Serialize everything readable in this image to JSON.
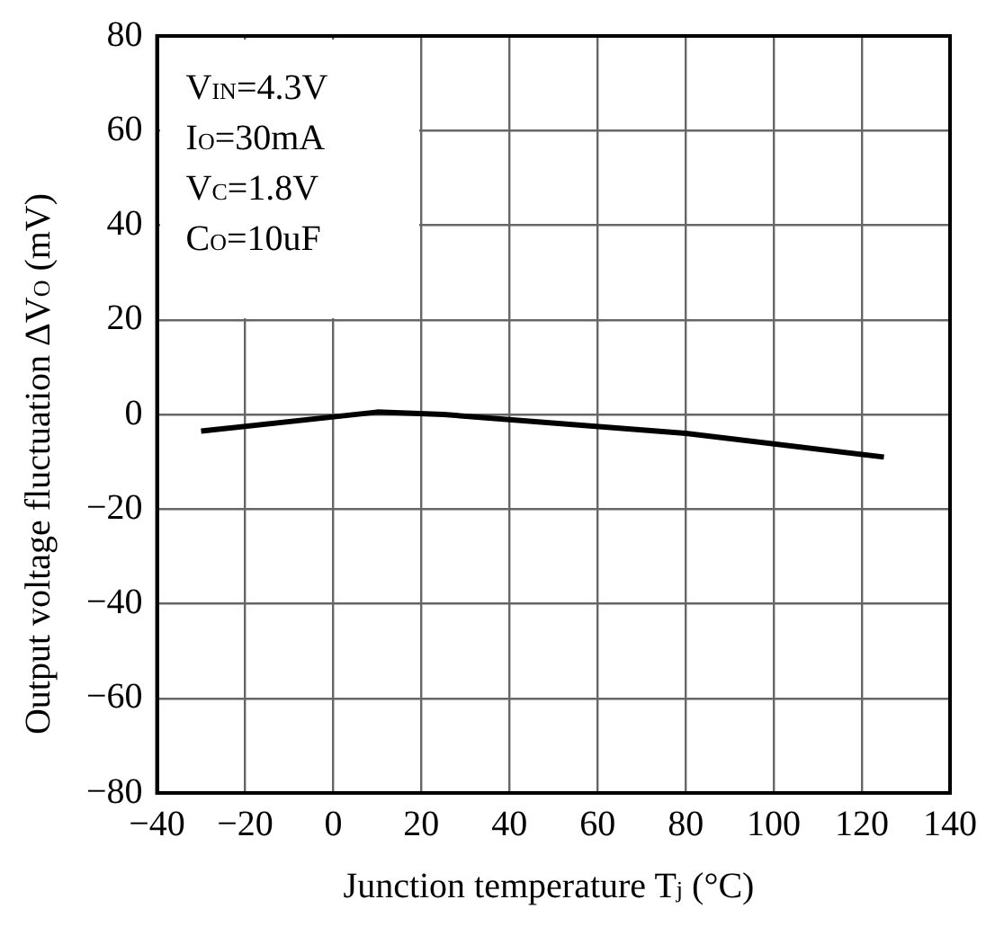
{
  "chart_data": {
    "type": "line",
    "xlabel": "Junction temperature T$_{j}$ (°C)",
    "ylabel": "Output voltage fluctuation ΔV$_{O}$ (mV)",
    "annotations": [
      "V$_{IN}$=4.3V",
      "I$_{O}$=30mA",
      "V$_{C}$=1.8V",
      "C$_{O}$=10uF"
    ],
    "series": [
      {
        "color": "#000000",
        "x": [
          -30,
          10,
          25,
          80,
          125
        ],
        "values": [
          -3.5,
          0.5,
          0,
          -4,
          -9
        ]
      }
    ],
    "xlim": [
      -40,
      140
    ],
    "xticks": [
      {
        "value": -40,
        "label": "−40"
      },
      {
        "value": -20,
        "label": "−20"
      },
      0,
      20,
      40,
      60,
      80,
      100,
      120,
      140
    ],
    "ylim": [
      -80,
      80
    ],
    "yticks": [
      {
        "value": -80,
        "label": "−80"
      },
      {
        "value": -60,
        "label": "−60"
      },
      {
        "value": -40,
        "label": "−40"
      },
      {
        "value": -20,
        "label": "−20"
      },
      0,
      20,
      40,
      60,
      80
    ],
    "grid": true,
    "legend": false,
    "marker": "none",
    "line_style": "solid"
  }
}
